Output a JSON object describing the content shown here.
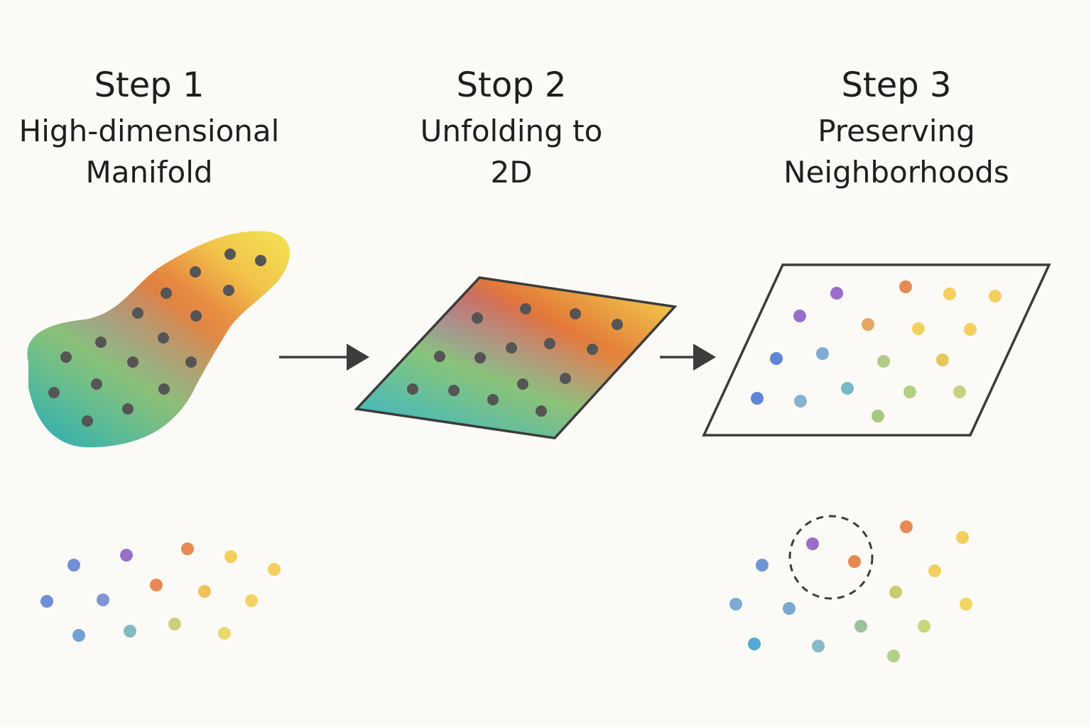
{
  "steps": [
    {
      "title": "Step 1",
      "line1": "High-dimensional",
      "line2": "Manifold"
    },
    {
      "title": "Stop 2",
      "line1": "Unfolding to",
      "line2": "2D"
    },
    {
      "title": "Step 3",
      "line1": "Preserving",
      "line2": "Neighborhoods"
    }
  ],
  "colors": {
    "background": "#fcfaf6",
    "outline": "#3c3c3c",
    "dot_dark": "#555555",
    "blue": "#4a74d0",
    "violet": "#8a5cc6",
    "orange": "#e27a3a",
    "yellow": "#f0c84a",
    "green": "#8cce6a",
    "teal": "#5ab0c0"
  },
  "icons": [
    "arrow-right-icon",
    "arrow-right-icon"
  ]
}
